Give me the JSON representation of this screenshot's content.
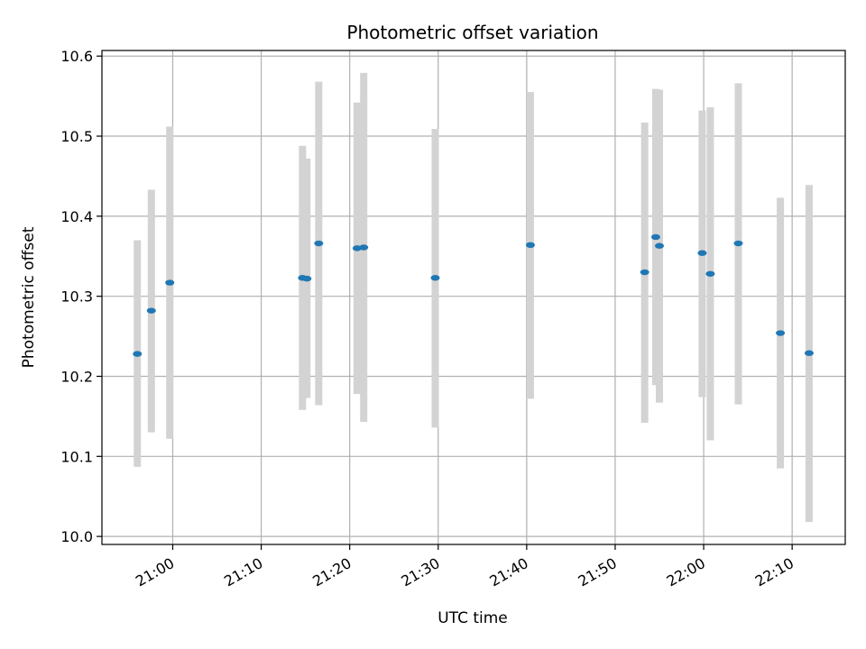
{
  "chart_data": {
    "type": "scatter",
    "title": "Photometric offset variation",
    "xlabel": "UTC time",
    "ylabel": "Photometric offset",
    "x_axis": {
      "unit": "time of day (UTC)",
      "range": [
        "20:52",
        "22:16"
      ],
      "ticks": [
        "21:00",
        "21:10",
        "21:20",
        "21:30",
        "21:40",
        "21:50",
        "22:00",
        "22:10"
      ]
    },
    "y_axis": {
      "range": [
        9.99,
        10.607
      ],
      "ticks": [
        "10.0",
        "10.1",
        "10.2",
        "10.3",
        "10.4",
        "10.5",
        "10.6"
      ]
    },
    "grid": true,
    "marker_color": "#1f77b4",
    "errorbar_color": "#d3d3d3",
    "points": [
      {
        "time": "20:56:00",
        "y": 10.228,
        "ylow": 10.087,
        "yhigh": 10.37
      },
      {
        "time": "20:57:35",
        "y": 10.282,
        "ylow": 10.13,
        "yhigh": 10.433
      },
      {
        "time": "20:59:40",
        "y": 10.317,
        "ylow": 10.122,
        "yhigh": 10.512
      },
      {
        "time": "21:14:40",
        "y": 10.323,
        "ylow": 10.158,
        "yhigh": 10.488
      },
      {
        "time": "21:15:10",
        "y": 10.322,
        "ylow": 10.173,
        "yhigh": 10.472
      },
      {
        "time": "21:16:30",
        "y": 10.366,
        "ylow": 10.164,
        "yhigh": 10.568
      },
      {
        "time": "21:20:50",
        "y": 10.36,
        "ylow": 10.178,
        "yhigh": 10.542
      },
      {
        "time": "21:21:35",
        "y": 10.361,
        "ylow": 10.143,
        "yhigh": 10.579
      },
      {
        "time": "21:29:40",
        "y": 10.323,
        "ylow": 10.136,
        "yhigh": 10.509
      },
      {
        "time": "21:40:25",
        "y": 10.364,
        "ylow": 10.172,
        "yhigh": 10.555
      },
      {
        "time": "21:53:20",
        "y": 10.33,
        "ylow": 10.142,
        "yhigh": 10.517
      },
      {
        "time": "21:54:35",
        "y": 10.374,
        "ylow": 10.189,
        "yhigh": 10.559
      },
      {
        "time": "21:55:00",
        "y": 10.363,
        "ylow": 10.167,
        "yhigh": 10.558
      },
      {
        "time": "21:59:50",
        "y": 10.354,
        "ylow": 10.174,
        "yhigh": 10.532
      },
      {
        "time": "22:00:45",
        "y": 10.328,
        "ylow": 10.12,
        "yhigh": 10.536
      },
      {
        "time": "22:03:55",
        "y": 10.366,
        "ylow": 10.165,
        "yhigh": 10.566
      },
      {
        "time": "22:08:40",
        "y": 10.254,
        "ylow": 10.085,
        "yhigh": 10.423
      },
      {
        "time": "22:11:55",
        "y": 10.229,
        "ylow": 10.018,
        "yhigh": 10.439
      }
    ]
  }
}
